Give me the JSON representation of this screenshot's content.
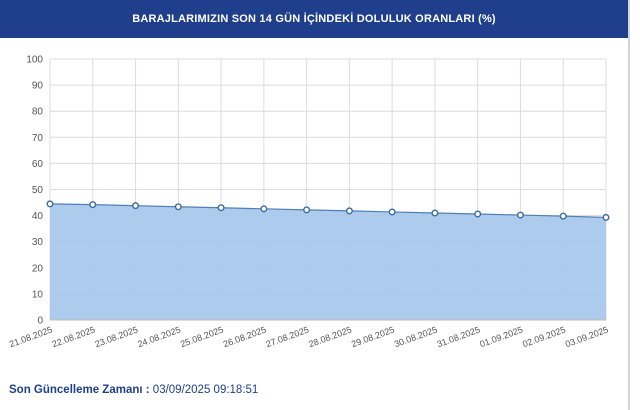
{
  "header": {
    "title": "BARAJLARIMIZIN SON 14 GÜN İÇİNDEKİ DOLULUK ORANLARI (%)"
  },
  "footer": {
    "label": "Son Güncelleme Zamanı :",
    "value": "03/09/2025 09:18:51"
  },
  "colors": {
    "header_bg": "#1f3f8c",
    "area_fill": "#a9c8ec",
    "line": "#4f7fb5",
    "grid": "#dcdcdc"
  },
  "chart_data": {
    "type": "area",
    "categories": [
      "21.08.2025",
      "22.08.2025",
      "23.08.2025",
      "24.08.2025",
      "25.08.2025",
      "26.08.2025",
      "27.08.2025",
      "28.08.2025",
      "29.08.2025",
      "30.08.2025",
      "31.08.2025",
      "01.09.2025",
      "02.09.2025",
      "03.09.2025"
    ],
    "series": [
      {
        "values": [
          44.5,
          44.2,
          43.8,
          43.4,
          43.0,
          42.6,
          42.2,
          41.8,
          41.4,
          41.0,
          40.6,
          40.2,
          39.8,
          39.3
        ]
      }
    ],
    "ylim": [
      0,
      100
    ],
    "yticks": [
      0,
      10,
      20,
      30,
      40,
      50,
      60,
      70,
      80,
      90,
      100
    ],
    "grid": true,
    "legend": false
  }
}
